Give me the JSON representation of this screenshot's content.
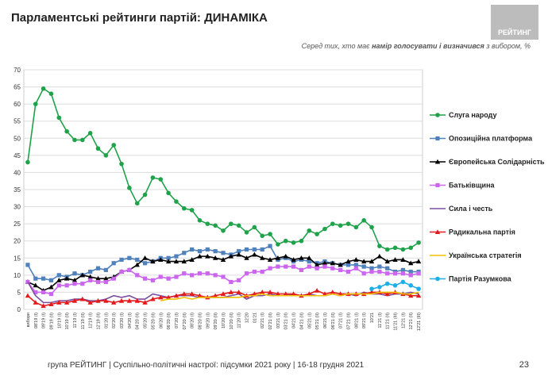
{
  "header": {
    "title": "Парламентські рейтинги партій: ДИНАМІКА",
    "logo": "РЕЙТИНГ"
  },
  "subtitle": {
    "before": "Серед тих, хто має ",
    "bold": "намір голосувати і визначився",
    "after": " з вибором, %"
  },
  "footer": {
    "text": "група РЕЙТИНГ | Суспільно-політичні настрої: підсумки 2021 року | 16-18 грудня 2021",
    "page": "23"
  },
  "chart_data": {
    "type": "line",
    "grid": true,
    "legend": "right",
    "ylim": [
      0,
      70
    ],
    "yticks": [
      0,
      5,
      10,
      15,
      20,
      25,
      30,
      35,
      40,
      45,
      50,
      55,
      60,
      65,
      70
    ],
    "categories": [
      "вибори",
      "08'19 (І)",
      "09'19 (І)",
      "09'19 (ІІ)",
      "10'19 (І)",
      "10'19 (ІІ)",
      "11'19 (І)",
      "11'19 (ІІ)",
      "12'19 (І)",
      "12'19 (ІІ)",
      "01'20 (І)",
      "02'20 (І)",
      "03'20 (І)",
      "04'20 (І)",
      "04'20 (ІІ)",
      "05'20 (І)",
      "05'20 (ІІ)",
      "06'20 (І)",
      "06'20 (ІІ)",
      "07'20 (І)",
      "07'20 (ІІ)",
      "08'20 (І)",
      "08'20 (ІІ)",
      "09'20 (І)",
      "09'20 (ІІ)",
      "10'20 (І)",
      "10'20 (ІІ)",
      "11'20 (І)",
      "12'20",
      "01'21",
      "02'21 (І)",
      "02'21 (ІІ)",
      "03'21 (І)",
      "03'21 (ІІ)",
      "04'21 (І)",
      "04'21 (ІІ)",
      "05'21 (І)",
      "05'21 (ІІ)",
      "06'21 (І)",
      "06'21 (ІІ)",
      "07'21 (І)",
      "07'21 (ІІ)",
      "08'21 (І)",
      "09'21 (І)",
      "10'21",
      "11'21 (І)",
      "11'21 (ІІ)",
      "11'21 (ІІІ)",
      "12'21 (І)",
      "12'21 (ІІ)",
      "12'21 (ІІІ)"
    ],
    "series": [
      {
        "name": "Слуга народу",
        "color": "#1fa34a",
        "marker": "circle",
        "values": [
          43,
          60,
          64.5,
          63,
          56,
          52,
          49.5,
          49.5,
          51.5,
          47,
          45,
          48,
          42.5,
          35.5,
          31,
          33.5,
          38.5,
          38,
          34,
          31.5,
          29.5,
          29,
          26,
          25,
          24.5,
          23,
          25,
          24.5,
          22.5,
          24,
          21.5,
          22,
          19,
          20,
          19.5,
          20,
          23,
          22,
          23.5,
          25,
          24.5,
          25,
          24,
          26,
          24,
          18.5,
          17.5,
          18,
          17.5,
          18,
          19.5
        ]
      },
      {
        "name": "Опозиційна платформа",
        "color": "#4f81bd",
        "marker": "square",
        "values": [
          13,
          9,
          9,
          8.5,
          10,
          9.5,
          10.5,
          10,
          11,
          12,
          11.5,
          13.5,
          14.5,
          15,
          14.5,
          13.5,
          14,
          15,
          15,
          15.5,
          16.5,
          17.5,
          17,
          17.5,
          17,
          16.5,
          16,
          17,
          17.5,
          17.5,
          17.5,
          18.5,
          14.5,
          15,
          14,
          14.5,
          14,
          13.5,
          14,
          13.5,
          13,
          13,
          13,
          12.5,
          12,
          12.5,
          12,
          11,
          11.5,
          11,
          11
        ]
      },
      {
        "name": "Європейська Солідарність",
        "color": "#000000",
        "marker": "triangle",
        "values": [
          8,
          7,
          5.5,
          6.5,
          8.5,
          9,
          8.5,
          10,
          9.5,
          9,
          9,
          9.5,
          11,
          11.5,
          13,
          15,
          14,
          14.5,
          14,
          14,
          14,
          14.5,
          15.5,
          15.5,
          15,
          14.5,
          15.5,
          16,
          15,
          16,
          15,
          14.5,
          15,
          15.5,
          14.5,
          15,
          15,
          13,
          13.5,
          13.5,
          13,
          14,
          14.5,
          14,
          14,
          15.5,
          14,
          14.5,
          14.5,
          13.5,
          14
        ]
      },
      {
        "name": "Батьківщина",
        "color": "#cc66ee",
        "marker": "square",
        "values": [
          8,
          5,
          5,
          4.5,
          7,
          7,
          7.5,
          7.5,
          8.5,
          8,
          8,
          9,
          11,
          11.5,
          10,
          9,
          8.5,
          9.5,
          9,
          9.5,
          10.5,
          10,
          10.5,
          10.5,
          10,
          9.5,
          8,
          8.5,
          10.5,
          11,
          11,
          12,
          12.5,
          12.5,
          12.5,
          11.5,
          12.5,
          12,
          12.5,
          12,
          11.5,
          11,
          12,
          10.5,
          11,
          11,
          10.5,
          10.5,
          10.5,
          10,
          10.5
        ]
      },
      {
        "name": "Сила і честь",
        "color": "#7a4fa0",
        "marker": "none",
        "values": [
          8,
          4,
          2,
          2,
          2.5,
          2.5,
          3,
          3,
          2.5,
          2.5,
          3,
          4,
          3.5,
          4,
          3,
          3,
          4.5,
          4,
          3.5,
          4,
          4,
          4,
          3.5,
          3.5,
          3.5,
          3.5,
          4,
          4.5,
          3,
          4,
          4,
          4.5,
          4,
          4,
          4.5,
          4,
          4.5,
          4,
          4,
          4.5,
          4,
          4.5,
          4,
          5,
          4.5,
          4.5,
          4,
          4.5,
          4.5,
          5,
          4.5
        ]
      },
      {
        "name": "Радикальна партія",
        "color": "#e31a1c",
        "marker": "triangle",
        "values": [
          4,
          2,
          1,
          1.5,
          2,
          2,
          2.5,
          3,
          2,
          2.5,
          2.5,
          2,
          2.5,
          2.5,
          2.5,
          2,
          3,
          3.5,
          3.5,
          4,
          4.5,
          4.5,
          4,
          3.5,
          4,
          4.5,
          5,
          5,
          4,
          4.5,
          5,
          5,
          4.5,
          4.5,
          4.5,
          4,
          4.5,
          5.5,
          4.5,
          5,
          4.5,
          4.5,
          4.5,
          4.5,
          5,
          5,
          4.5,
          5,
          4.5,
          4,
          4
        ]
      },
      {
        "name": "Українська стратегія",
        "color": "#f0c000",
        "marker": "none",
        "values": [
          null,
          null,
          null,
          null,
          null,
          null,
          null,
          null,
          null,
          null,
          null,
          null,
          null,
          null,
          null,
          null,
          null,
          2.5,
          3,
          3,
          3.5,
          3,
          3.5,
          3.5,
          3.5,
          3.5,
          3.5,
          3.5,
          4,
          4,
          4.5,
          4,
          4,
          4,
          4,
          4,
          4,
          4,
          4,
          4.5,
          4,
          4.5,
          4.5,
          4.5,
          4.5,
          5,
          5,
          5,
          4.5,
          4.5,
          5
        ]
      },
      {
        "name": "Партія Разумкова",
        "color": "#1eaee8",
        "marker": "circle",
        "values": [
          null,
          null,
          null,
          null,
          null,
          null,
          null,
          null,
          null,
          null,
          null,
          null,
          null,
          null,
          null,
          null,
          null,
          null,
          null,
          null,
          null,
          null,
          null,
          null,
          null,
          null,
          null,
          null,
          null,
          null,
          null,
          null,
          null,
          null,
          null,
          null,
          null,
          null,
          null,
          null,
          null,
          null,
          null,
          null,
          6,
          6.5,
          7.5,
          7,
          8,
          7,
          6
        ]
      }
    ]
  }
}
